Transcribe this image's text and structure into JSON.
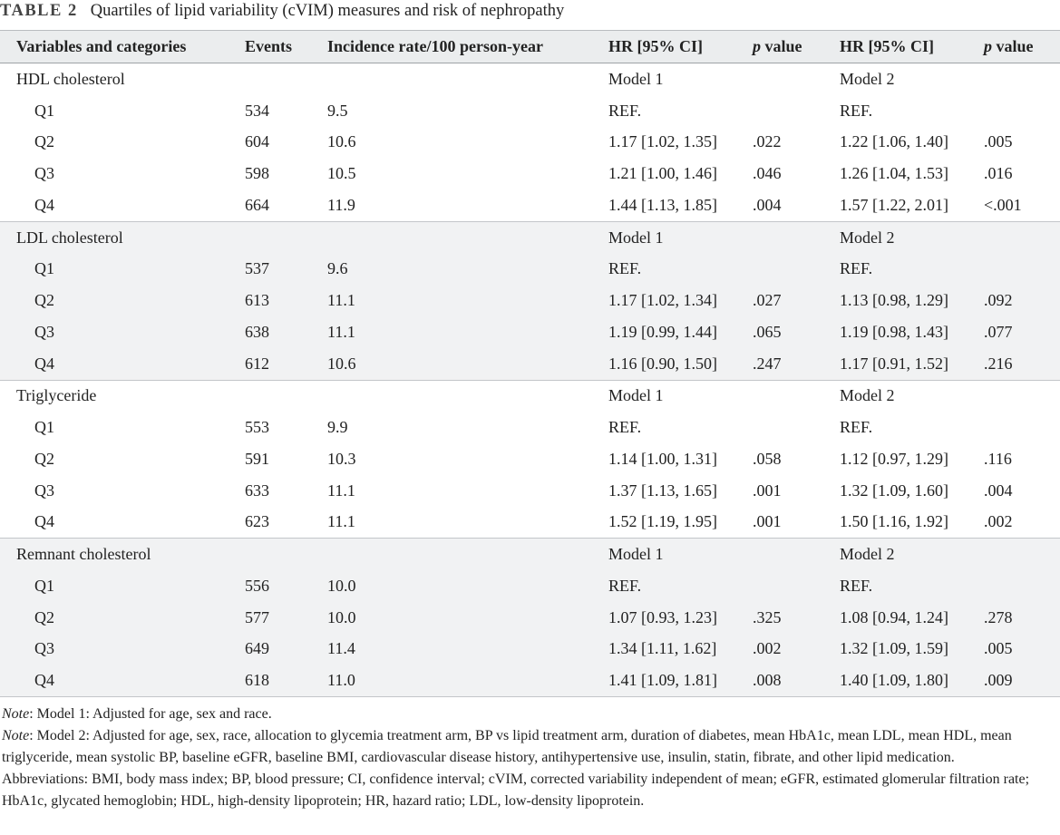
{
  "table_label": "TABLE 2",
  "table_title": "Quartiles of lipid variability (cVIM) measures and risk of nephropathy",
  "columns": {
    "variable": "Variables and categories",
    "events": "Events",
    "incidence": "Incidence rate/100 person-year",
    "hr1": "HR [95% CI]",
    "p1_letter": "p",
    "p1_rest": " value",
    "hr2": "HR [95% CI]",
    "p2_letter": "p",
    "p2_rest": " value"
  },
  "groups": [
    {
      "name": "HDL cholesterol",
      "model1": "Model 1",
      "model2": "Model 2",
      "rows": [
        {
          "q": "Q1",
          "events": "534",
          "rate": "9.5",
          "hr1": "REF.",
          "p1": "",
          "hr2": "REF.",
          "p2": ""
        },
        {
          "q": "Q2",
          "events": "604",
          "rate": "10.6",
          "hr1": "1.17 [1.02, 1.35]",
          "p1": ".022",
          "hr2": "1.22 [1.06, 1.40]",
          "p2": ".005"
        },
        {
          "q": "Q3",
          "events": "598",
          "rate": "10.5",
          "hr1": "1.21 [1.00, 1.46]",
          "p1": ".046",
          "hr2": "1.26 [1.04, 1.53]",
          "p2": ".016"
        },
        {
          "q": "Q4",
          "events": "664",
          "rate": "11.9",
          "hr1": "1.44 [1.13, 1.85]",
          "p1": ".004",
          "hr2": "1.57 [1.22, 2.01]",
          "p2": "<.001"
        }
      ]
    },
    {
      "name": "LDL cholesterol",
      "model1": "Model 1",
      "model2": "Model 2",
      "rows": [
        {
          "q": "Q1",
          "events": "537",
          "rate": "9.6",
          "hr1": "REF.",
          "p1": "",
          "hr2": "REF.",
          "p2": ""
        },
        {
          "q": "Q2",
          "events": "613",
          "rate": "11.1",
          "hr1": "1.17 [1.02, 1.34]",
          "p1": ".027",
          "hr2": "1.13 [0.98, 1.29]",
          "p2": ".092"
        },
        {
          "q": "Q3",
          "events": "638",
          "rate": "11.1",
          "hr1": "1.19 [0.99, 1.44]",
          "p1": ".065",
          "hr2": "1.19 [0.98, 1.43]",
          "p2": ".077"
        },
        {
          "q": "Q4",
          "events": "612",
          "rate": "10.6",
          "hr1": "1.16 [0.90, 1.50]",
          "p1": ".247",
          "hr2": "1.17 [0.91, 1.52]",
          "p2": ".216"
        }
      ]
    },
    {
      "name": "Triglyceride",
      "model1": "Model 1",
      "model2": "Model 2",
      "rows": [
        {
          "q": "Q1",
          "events": "553",
          "rate": "9.9",
          "hr1": "REF.",
          "p1": "",
          "hr2": "REF.",
          "p2": ""
        },
        {
          "q": "Q2",
          "events": "591",
          "rate": "10.3",
          "hr1": "1.14 [1.00, 1.31]",
          "p1": ".058",
          "hr2": "1.12 [0.97, 1.29]",
          "p2": ".116"
        },
        {
          "q": "Q3",
          "events": "633",
          "rate": "11.1",
          "hr1": "1.37 [1.13, 1.65]",
          "p1": ".001",
          "hr2": "1.32 [1.09, 1.60]",
          "p2": ".004"
        },
        {
          "q": "Q4",
          "events": "623",
          "rate": "11.1",
          "hr1": "1.52 [1.19, 1.95]",
          "p1": ".001",
          "hr2": "1.50 [1.16, 1.92]",
          "p2": ".002"
        }
      ]
    },
    {
      "name": "Remnant cholesterol",
      "model1": "Model 1",
      "model2": "Model 2",
      "rows": [
        {
          "q": "Q1",
          "events": "556",
          "rate": "10.0",
          "hr1": "REF.",
          "p1": "",
          "hr2": "REF.",
          "p2": ""
        },
        {
          "q": "Q2",
          "events": "577",
          "rate": "10.0",
          "hr1": "1.07 [0.93, 1.23]",
          "p1": ".325",
          "hr2": "1.08 [0.94, 1.24]",
          "p2": ".278"
        },
        {
          "q": "Q3",
          "events": "649",
          "rate": "11.4",
          "hr1": "1.34 [1.11, 1.62]",
          "p1": ".002",
          "hr2": "1.32 [1.09, 1.59]",
          "p2": ".005"
        },
        {
          "q": "Q4",
          "events": "618",
          "rate": "11.0",
          "hr1": "1.41 [1.09, 1.81]",
          "p1": ".008",
          "hr2": "1.40 [1.09, 1.80]",
          "p2": ".009"
        }
      ]
    }
  ],
  "notes": {
    "note1_label": "Note",
    "note1_text": ": Model 1: Adjusted for age, sex and race.",
    "note2_label": "Note",
    "note2_text": ": Model 2: Adjusted for age, sex, race, allocation to glycemia treatment arm, BP vs lipid treatment arm, duration of diabetes, mean HbA1c, mean LDL, mean HDL, mean triglyceride, mean systolic BP, baseline eGFR, baseline BMI, cardiovascular disease history, antihypertensive use, insulin, statin, fibrate, and other lipid medication.",
    "abbreviations": "Abbreviations: BMI, body mass index; BP, blood pressure; CI, confidence interval; cVIM, corrected variability independent of mean; eGFR, estimated glomerular filtration rate; HbA1c, glycated hemoglobin; HDL, high-density lipoprotein; HR, hazard ratio; LDL, low-density lipoprotein."
  }
}
